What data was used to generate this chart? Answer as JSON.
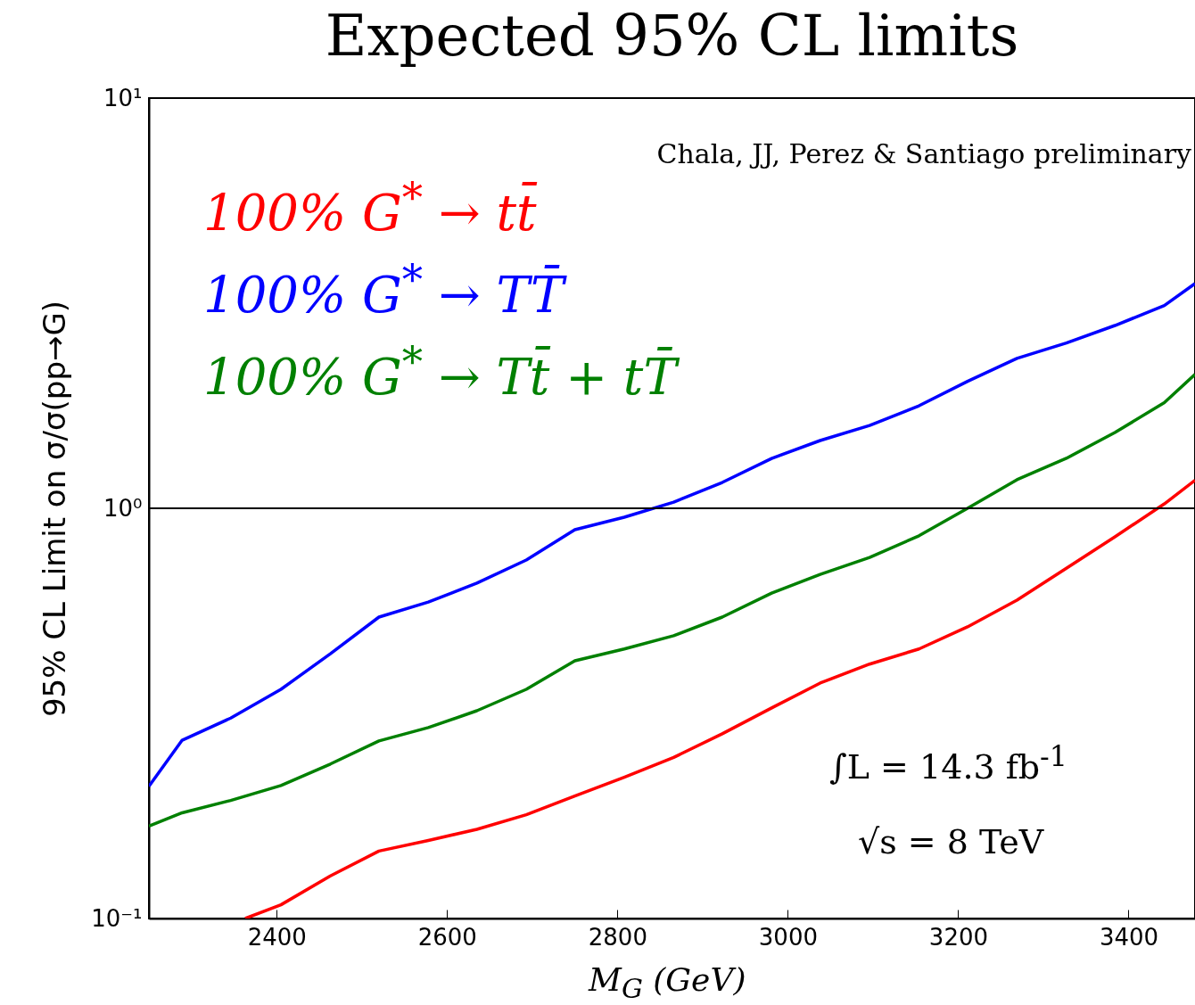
{
  "chart_data": {
    "type": "line",
    "title": "Expected 95% CL limits",
    "xlabel": "M$_{G}$  (GeV)",
    "ylabel": "95% CL Limit on σ/σ(pp→G)",
    "x": [
      2250,
      2289,
      2346,
      2405,
      2463,
      2520,
      2578,
      2635,
      2693,
      2750,
      2808,
      2866,
      2923,
      2981,
      3038,
      3096,
      3154,
      3211,
      3269,
      3327,
      3384,
      3442,
      3478
    ],
    "series": [
      {
        "name": "100% G$^{*}$ → tt̄",
        "color": "#ff0000",
        "x": [
          2363,
          2405,
          2463,
          2520,
          2578,
          2635,
          2693,
          2750,
          2808,
          2866,
          2923,
          2981,
          3038,
          3096,
          3154,
          3211,
          3269,
          3327,
          3384,
          3442,
          3478
        ],
        "values": [
          0.1,
          0.108,
          0.127,
          0.146,
          0.155,
          0.165,
          0.179,
          0.199,
          0.221,
          0.247,
          0.282,
          0.326,
          0.375,
          0.417,
          0.454,
          0.514,
          0.597,
          0.714,
          0.852,
          1.025,
          1.17
        ]
      },
      {
        "name": "100% G$^{*}$ → TT̄",
        "color": "#0000ff",
        "values": [
          0.21,
          0.272,
          0.308,
          0.362,
          0.442,
          0.543,
          0.591,
          0.657,
          0.748,
          0.887,
          0.951,
          1.035,
          1.156,
          1.323,
          1.463,
          1.592,
          1.778,
          2.04,
          2.32,
          2.53,
          2.79,
          3.12,
          3.53
        ]
      },
      {
        "name": "100% G$^{*}$ → Tt̄ + tT̄",
        "color": "#008000",
        "values": [
          0.168,
          0.181,
          0.194,
          0.211,
          0.238,
          0.271,
          0.292,
          0.321,
          0.362,
          0.425,
          0.454,
          0.489,
          0.543,
          0.621,
          0.69,
          0.759,
          0.857,
          1.0,
          1.174,
          1.324,
          1.53,
          1.81,
          2.12
        ]
      }
    ],
    "log": true,
    "xlim": [
      2250,
      3478
    ],
    "xticks": [
      2400,
      2600,
      2800,
      3000,
      3200,
      3400
    ],
    "ylim": [
      0.1,
      10
    ],
    "yticks": [
      {
        "value": 0.1,
        "label": "10⁻¹"
      },
      {
        "value": 1,
        "label": "10⁰"
      },
      {
        "value": 10,
        "label": "10¹"
      }
    ],
    "ref_lines": [
      {
        "axis": "y",
        "value": 1,
        "color": "#000000"
      }
    ],
    "grid": false,
    "legend": "top left",
    "line_style": "solid",
    "annotations": [
      "Chala, JJ, Perez & Santiago preliminary",
      "∫L = 14.3 fb$^{-1}$",
      "√s = 8 TeV"
    ]
  }
}
